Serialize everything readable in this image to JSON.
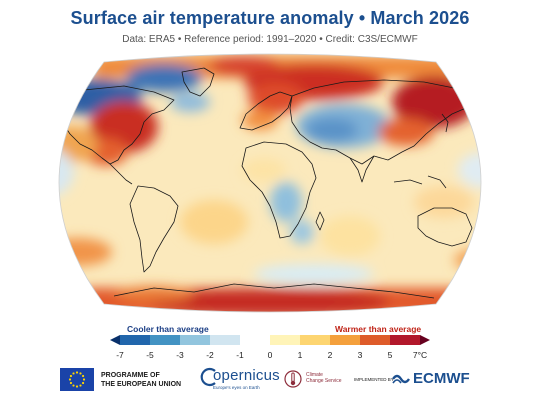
{
  "header": {
    "title": "Surface air temperature anomaly • March 2026",
    "subtitle": "Data: ERA5 • Reference period: 1991–2020 • Credit: C3S/ECMWF"
  },
  "map": {
    "projection": "Robinson-like world map",
    "overall_pattern": "Mostly warmer than average (yellow/orange), with strong warm anomalies over the eastern United States, northern Atlantic/Europe, and north-east Asia; cooler than average over northern Canada/Greenland, central Asia and parts of East Africa; very warm near the Antarctic coast."
  },
  "legend": {
    "cooler_label": "Cooler than average",
    "warmer_label": "Warmer than average",
    "ticks": [
      "-7",
      "-5",
      "-3",
      "-2",
      "-1",
      "0",
      "1",
      "2",
      "3",
      "5",
      "7°C"
    ],
    "colors": [
      "#08306b",
      "#2166ac",
      "#4393c3",
      "#92c5de",
      "#d1e5f0",
      "#ffffff",
      "#fff4b8",
      "#fdd571",
      "#f4a03c",
      "#de5b2a",
      "#b2182b",
      "#67001f"
    ]
  },
  "logos": {
    "eu_line1": "PROGRAMME OF",
    "eu_line2": "THE EUROPEAN UNION",
    "copernicus": "opernicus",
    "copernicus_tagline": "Europe's eyes on Earth",
    "climate_service_line1": "Climate",
    "climate_service_line2": "Change Service",
    "implemented_by": "IMPLEMENTED BY",
    "ecmwf": "ECMWF"
  }
}
